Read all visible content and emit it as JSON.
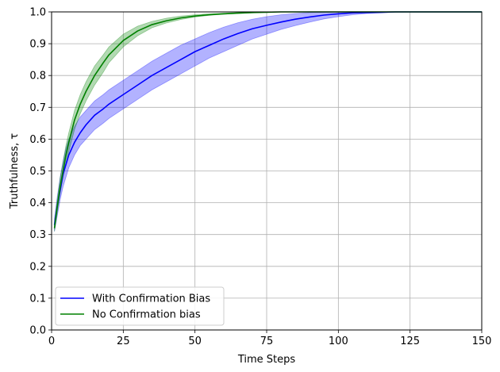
{
  "chart_data": {
    "type": "line",
    "title": "",
    "xlabel": "Time Steps",
    "ylabel": "Truthfulness, τ",
    "xlim": [
      0,
      150
    ],
    "ylim": [
      0,
      1.0
    ],
    "xticks": [
      0,
      25,
      50,
      75,
      100,
      125,
      150
    ],
    "yticks": [
      0.0,
      0.1,
      0.2,
      0.3,
      0.4,
      0.5,
      0.6,
      0.7,
      0.8,
      0.9,
      1.0
    ],
    "xtick_labels": [
      "0",
      "25",
      "50",
      "75",
      "100",
      "125",
      "150"
    ],
    "ytick_labels": [
      "0.0",
      "0.1",
      "0.2",
      "0.3",
      "0.4",
      "0.5",
      "0.6",
      "0.7",
      "0.8",
      "0.9",
      "1.0"
    ],
    "grid": true,
    "legend_position": "lower-left",
    "series": [
      {
        "name": "With Confirmation Bias",
        "color": "#0000ff",
        "band_color": "#0000ff",
        "x": [
          1,
          2,
          3,
          4,
          5,
          6,
          8,
          10,
          12,
          15,
          18,
          20,
          25,
          30,
          35,
          40,
          45,
          50,
          55,
          60,
          65,
          70,
          75,
          80,
          85,
          90,
          95,
          100,
          105,
          110,
          115,
          120,
          125,
          130,
          140,
          150
        ],
        "mean": [
          0.33,
          0.39,
          0.44,
          0.49,
          0.52,
          0.55,
          0.59,
          0.62,
          0.645,
          0.675,
          0.695,
          0.71,
          0.74,
          0.77,
          0.8,
          0.825,
          0.85,
          0.875,
          0.895,
          0.915,
          0.932,
          0.947,
          0.958,
          0.968,
          0.977,
          0.984,
          0.99,
          0.994,
          0.997,
          0.998,
          0.999,
          1.0,
          1.0,
          1.0,
          1.0,
          1.0
        ],
        "lower": [
          0.31,
          0.36,
          0.41,
          0.45,
          0.48,
          0.51,
          0.55,
          0.58,
          0.6,
          0.63,
          0.65,
          0.665,
          0.695,
          0.725,
          0.755,
          0.78,
          0.805,
          0.83,
          0.855,
          0.875,
          0.895,
          0.915,
          0.93,
          0.945,
          0.957,
          0.968,
          0.978,
          0.985,
          0.991,
          0.995,
          0.997,
          0.999,
          1.0,
          1.0,
          1.0,
          1.0
        ],
        "upper": [
          0.35,
          0.42,
          0.48,
          0.53,
          0.57,
          0.6,
          0.64,
          0.67,
          0.69,
          0.72,
          0.74,
          0.755,
          0.785,
          0.815,
          0.845,
          0.87,
          0.895,
          0.915,
          0.935,
          0.952,
          0.966,
          0.977,
          0.985,
          0.991,
          0.995,
          0.998,
          0.999,
          1.0,
          1.0,
          1.0,
          1.0,
          1.0,
          1.0,
          1.0,
          1.0,
          1.0
        ]
      },
      {
        "name": "No Confirmation bias",
        "color": "#008000",
        "band_color": "#008000",
        "x": [
          1,
          2,
          3,
          4,
          5,
          6,
          8,
          10,
          12,
          15,
          18,
          20,
          25,
          30,
          35,
          40,
          45,
          50,
          55,
          60,
          65,
          70,
          75,
          80,
          90,
          100,
          150
        ],
        "mean": [
          0.32,
          0.39,
          0.45,
          0.5,
          0.55,
          0.59,
          0.66,
          0.71,
          0.75,
          0.8,
          0.84,
          0.865,
          0.91,
          0.94,
          0.96,
          0.972,
          0.981,
          0.987,
          0.991,
          0.994,
          0.996,
          0.998,
          0.999,
          1.0,
          1.0,
          1.0,
          1.0
        ],
        "lower": [
          0.31,
          0.37,
          0.43,
          0.48,
          0.52,
          0.56,
          0.63,
          0.68,
          0.72,
          0.77,
          0.81,
          0.84,
          0.89,
          0.925,
          0.95,
          0.965,
          0.976,
          0.984,
          0.989,
          0.993,
          0.995,
          0.997,
          0.999,
          1.0,
          1.0,
          1.0,
          1.0
        ],
        "upper": [
          0.34,
          0.41,
          0.48,
          0.53,
          0.58,
          0.62,
          0.69,
          0.74,
          0.78,
          0.83,
          0.865,
          0.89,
          0.93,
          0.955,
          0.97,
          0.98,
          0.987,
          0.991,
          0.994,
          0.996,
          0.998,
          0.999,
          1.0,
          1.0,
          1.0,
          1.0,
          1.0
        ]
      }
    ]
  }
}
